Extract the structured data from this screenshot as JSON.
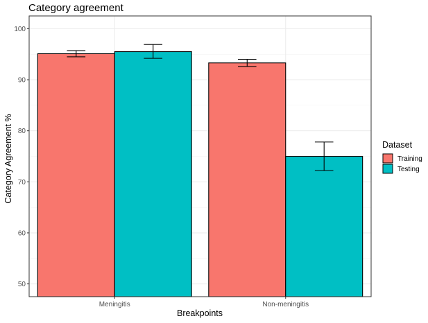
{
  "chart_data": {
    "type": "bar",
    "title": "Category agreement",
    "xlabel": "Breakpoints",
    "ylabel": "Category Agreement %",
    "categories": [
      "Meningitis",
      "Non-meningitis"
    ],
    "series": [
      {
        "name": "Training",
        "values": [
          95.1,
          93.3
        ],
        "err_low": [
          94.5,
          92.6
        ],
        "err_high": [
          95.7,
          94.0
        ],
        "color": "#F8766D"
      },
      {
        "name": "Testing",
        "values": [
          95.5,
          75.0
        ],
        "err_low": [
          94.2,
          72.2
        ],
        "err_high": [
          96.9,
          77.8
        ],
        "color": "#00BFC4"
      }
    ],
    "ylim": [
      47.5,
      102.5
    ],
    "yticks": [
      50,
      60,
      70,
      80,
      90,
      100
    ],
    "grid": true,
    "legend": {
      "title": "Dataset",
      "position": "right"
    }
  }
}
